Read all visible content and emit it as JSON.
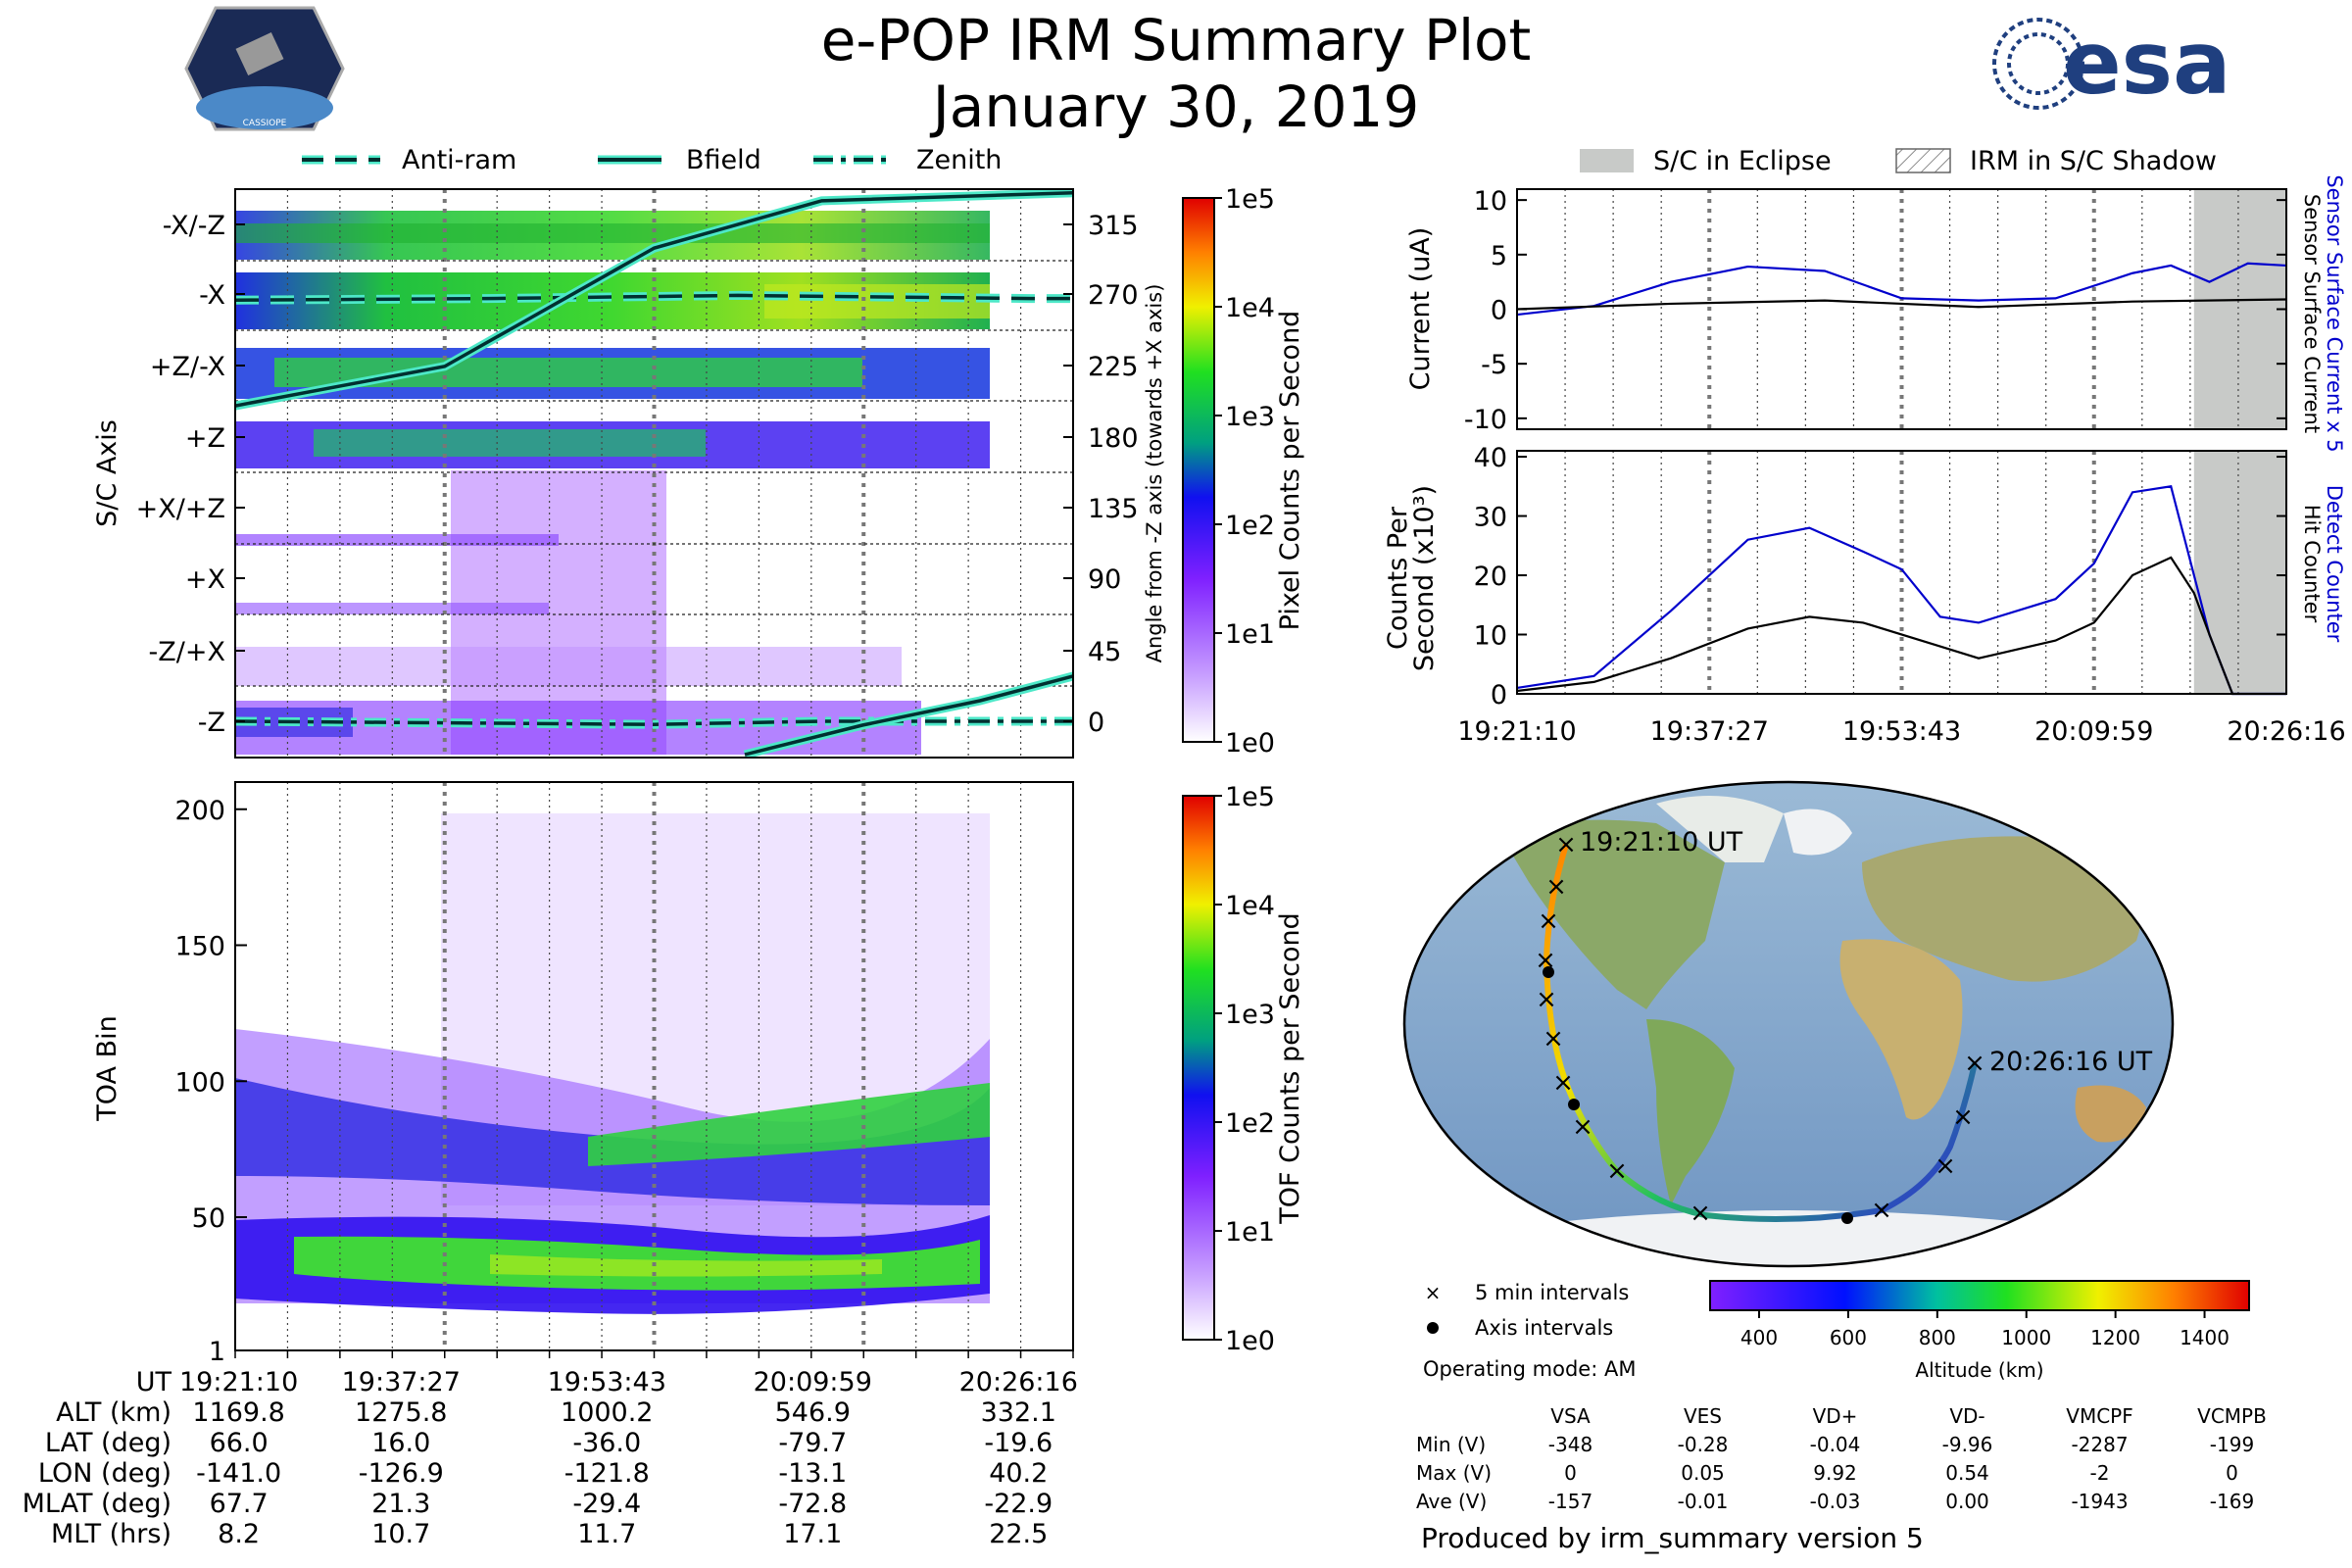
{
  "title": {
    "line1": "e-POP IRM Summary Plot",
    "line2": "January 30, 2019"
  },
  "logos": {
    "left": "CASSIOPE",
    "right": "esa"
  },
  "colors": {
    "series_primary": "#0000cc",
    "series_secondary": "#000000",
    "line_highlight": "#4de8c8",
    "eclipse": "#c8cac8"
  },
  "ut_ticks": [
    "19:21:10",
    "19:37:27",
    "19:53:43",
    "20:09:59",
    "20:26:16"
  ],
  "legend_top": {
    "anti_ram": "Anti-ram",
    "bfield": "Bfield",
    "zenith": "Zenith"
  },
  "legend_right": {
    "eclipse": "S/C in Eclipse",
    "shadow": "IRM in S/C Shadow"
  },
  "chart_data": [
    {
      "type": "heatmap",
      "name_id": "sc_axis_spectrogram",
      "ylabel": "S/C Axis",
      "y_tick_labels": [
        "-X/-Z",
        "-X",
        "+Z/-X",
        "+Z",
        "+X/+Z",
        "+X",
        "-Z/+X",
        "-Z"
      ],
      "right_ylabel": "Angle from -Z axis (towards +X axis)",
      "right_ticks": [
        315,
        270,
        225,
        180,
        135,
        90,
        45,
        0
      ],
      "colorbar": {
        "label": "Pixel Counts per Second",
        "ticks": [
          "1e5",
          "1e4",
          "1e3",
          "1e2",
          "1e1",
          "1e0"
        ],
        "scale": "log"
      },
      "lines": [
        {
          "name": "Anti-ram",
          "style": "dashed",
          "x": [
            0,
            0.3,
            0.6,
            0.95,
            1.0
          ],
          "y": [
            267,
            268,
            270,
            268,
            268
          ]
        },
        {
          "name": "Bfield",
          "style": "solid",
          "x": [
            0,
            0.25,
            0.5,
            0.7,
            1.0
          ],
          "y": [
            200,
            225,
            300,
            330,
            335
          ]
        },
        {
          "name": "Zenith",
          "style": "dash-dot",
          "x": [
            0,
            0.5,
            0.7,
            1.0
          ],
          "y": [
            0,
            -2,
            0,
            0
          ]
        }
      ]
    },
    {
      "type": "heatmap",
      "name_id": "toa_spectrogram",
      "ylabel": "TOA Bin",
      "y_ticks": [
        1,
        50,
        100,
        150,
        200
      ],
      "ylim": [
        1,
        210
      ],
      "colorbar": {
        "label": "TOF Counts per Second",
        "ticks": [
          "1e5",
          "1e4",
          "1e3",
          "1e2",
          "1e1",
          "1e0"
        ],
        "scale": "log"
      }
    },
    {
      "type": "line",
      "name_id": "current_panel",
      "ylabel": "Current (uA)",
      "ylim": [
        -11,
        11
      ],
      "y_ticks": [
        10,
        5,
        0,
        -5,
        -10
      ],
      "right_labels": [
        "Sensor Surface Current x 5",
        "Sensor Surface Current"
      ],
      "series": [
        {
          "name": "Sensor Surface Current x 5",
          "x": [
            0,
            0.1,
            0.2,
            0.3,
            0.4,
            0.5,
            0.6,
            0.7,
            0.8,
            0.85,
            0.9,
            0.95,
            1.0
          ],
          "values": [
            -0.5,
            0.3,
            2.5,
            3.9,
            3.5,
            1.0,
            0.8,
            1.0,
            3.3,
            4.0,
            2.5,
            4.2,
            4.0
          ]
        },
        {
          "name": "Sensor Surface Current",
          "x": [
            0,
            0.2,
            0.4,
            0.6,
            0.8,
            1.0
          ],
          "values": [
            0,
            0.5,
            0.8,
            0.2,
            0.7,
            0.9
          ]
        }
      ],
      "eclipse_from": 0.88
    },
    {
      "type": "line",
      "name_id": "counts_panel",
      "ylabel": "Counts Per Second (x10³)",
      "ylim": [
        0,
        41
      ],
      "y_ticks": [
        0,
        10,
        20,
        30,
        40
      ],
      "right_labels": [
        "Detect Counter",
        "Hit Counter"
      ],
      "series": [
        {
          "name": "Detect Counter",
          "x": [
            0,
            0.1,
            0.2,
            0.3,
            0.38,
            0.45,
            0.5,
            0.55,
            0.6,
            0.7,
            0.75,
            0.8,
            0.85,
            0.88,
            0.9,
            0.93,
            1.0
          ],
          "values": [
            1,
            3,
            14,
            26,
            28,
            24,
            21,
            13,
            12,
            16,
            22,
            34,
            35,
            20,
            10,
            0,
            0
          ]
        },
        {
          "name": "Hit Counter",
          "x": [
            0,
            0.1,
            0.2,
            0.3,
            0.38,
            0.45,
            0.55,
            0.6,
            0.7,
            0.75,
            0.8,
            0.85,
            0.88,
            0.9,
            0.93,
            1.0
          ],
          "values": [
            0.5,
            2,
            6,
            11,
            13,
            12,
            8,
            6,
            9,
            12,
            20,
            23,
            17,
            10,
            0,
            0
          ]
        }
      ],
      "eclipse_from": 0.88
    },
    {
      "type": "scatter",
      "name_id": "orbit_map",
      "start_label": "19:21:10 UT",
      "end_label": "20:26:16 UT",
      "legend": {
        "interval5": "5 min intervals",
        "axis": "Axis intervals"
      },
      "colorbar": {
        "label": "Altitude (km)",
        "ticks": [
          400,
          600,
          800,
          1000,
          1200,
          1400
        ],
        "range": [
          290,
          1500
        ]
      }
    }
  ],
  "ut_table": {
    "rows": [
      {
        "label": "UT",
        "values": [
          "19:21:10",
          "19:37:27",
          "19:53:43",
          "20:09:59",
          "20:26:16"
        ]
      },
      {
        "label": "ALT (km)",
        "values": [
          "1169.8",
          "1275.8",
          "1000.2",
          "546.9",
          "332.1"
        ]
      },
      {
        "label": "LAT (deg)",
        "values": [
          "66.0",
          "16.0",
          "-36.0",
          "-79.7",
          "-19.6"
        ]
      },
      {
        "label": "LON (deg)",
        "values": [
          "-141.0",
          "-126.9",
          "-121.8",
          "-13.1",
          "40.2"
        ]
      },
      {
        "label": "MLAT (deg)",
        "values": [
          "67.7",
          "21.3",
          "-29.4",
          "-72.8",
          "-22.9"
        ]
      },
      {
        "label": "MLT (hrs)",
        "values": [
          "8.2",
          "10.7",
          "11.7",
          "17.1",
          "22.5"
        ]
      }
    ]
  },
  "operating_mode": "Operating mode: AM",
  "voltage_table": {
    "headers": [
      "VSA",
      "VES",
      "VD+",
      "VD-",
      "VMCPF",
      "VCMPB"
    ],
    "rows": [
      {
        "label": "Min (V)",
        "values": [
          "-348",
          "-0.28",
          "-0.04",
          "-9.96",
          "-2287",
          "-199"
        ]
      },
      {
        "label": "Max (V)",
        "values": [
          "0",
          "0.05",
          "9.92",
          "0.54",
          "-2",
          "0"
        ]
      },
      {
        "label": "Ave (V)",
        "values": [
          "-157",
          "-0.01",
          "-0.03",
          "0.00",
          "-1943",
          "-169"
        ]
      }
    ]
  },
  "produced_by": "Produced by irm_summary version 5"
}
